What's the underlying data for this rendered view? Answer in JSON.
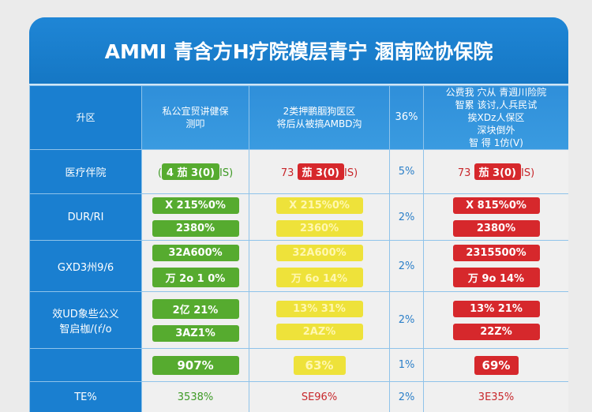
{
  "title": "AMMI 青含方H疗院模层青宁 溷南险协保院",
  "header": {
    "label": "升区",
    "col1": [
      "私公宜贸讲健保",
      "测叩"
    ],
    "col2": [
      "2类押鹏胭狗医区",
      "将后从被搞AMBD沟"
    ],
    "col3": "36%",
    "col4": [
      "公费我 穴从 青週川险院",
      "智累 该讨,人兵民试",
      "挨XDz人保区",
      "深块倒外",
      "智 得 1仿(V)"
    ]
  },
  "rows": [
    {
      "label": "医疗伴院",
      "col1": {
        "pre": "(",
        "pill": "4 茄 3(0)",
        "post": "IS)"
      },
      "col2": {
        "pre": "73 ",
        "pill": "茄 3(0)",
        "post": "IS)"
      },
      "col3": "5%",
      "col4": {
        "pre": "73 ",
        "pill": "茄 3(0)",
        "post": "IS)"
      }
    },
    {
      "label": "DUR/RI",
      "col1": [
        "X 215%0%",
        "2380%"
      ],
      "col2": [
        "X 215%0%",
        "2360%"
      ],
      "col3": "2%",
      "col4": [
        "X 815%0%",
        "2380%"
      ]
    },
    {
      "label": "GXD3州9/6",
      "col1": [
        "32A600%",
        "万 2o 1 0%"
      ],
      "col2": [
        "32A600%",
        "万 6o 14%"
      ],
      "col3": "2%",
      "col4": [
        "2315500%",
        "万 9o 14%"
      ]
    },
    {
      "label": [
        "效UD象些公义",
        "智启枷/(ŕ/o"
      ],
      "col1": [
        "2亿 21%",
        "3AZ1%"
      ],
      "col2": [
        "13% 31%",
        "2AZ%"
      ],
      "col3": "2%",
      "col4": [
        "13% 21%",
        "22Z%"
      ]
    },
    {
      "label": "",
      "col1": "907%",
      "col2": "63%",
      "col3": "1%",
      "col4": "69%"
    },
    {
      "label": "TE%",
      "col1": "3538%",
      "col2": "SE96%",
      "col3": "2%",
      "col4": "3E35%"
    }
  ],
  "colors": {
    "primary": "#1a7fd0",
    "green": "#56ab2f",
    "yellow": "#eee23a",
    "red": "#d6282c"
  }
}
